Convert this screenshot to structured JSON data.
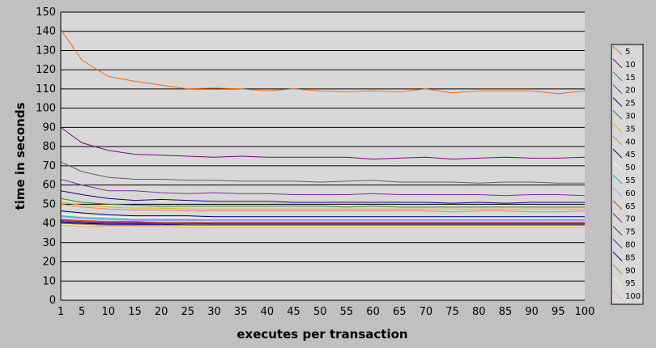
{
  "chart_data": {
    "type": "line",
    "xlabel": "executes per transaction",
    "ylabel": "time in seconds",
    "ylim": [
      0,
      150
    ],
    "xlim": [
      1,
      100
    ],
    "x_ticks": [
      1,
      5,
      10,
      15,
      20,
      25,
      30,
      35,
      40,
      45,
      50,
      55,
      60,
      65,
      70,
      75,
      80,
      85,
      90,
      95,
      100
    ],
    "y_ticks": [
      0,
      10,
      20,
      30,
      40,
      50,
      60,
      70,
      80,
      90,
      100,
      110,
      120,
      130,
      140,
      150
    ],
    "grid": "horizontal",
    "legend_position": "right",
    "x": [
      1,
      5,
      10,
      15,
      20,
      25,
      30,
      35,
      40,
      45,
      50,
      55,
      60,
      65,
      70,
      75,
      80,
      85,
      90,
      95,
      100
    ],
    "series": [
      {
        "name": "5",
        "color": "#ff6600",
        "values": [
          141,
          125,
          116.5,
          114,
          112,
          110,
          110.5,
          110,
          109,
          110,
          109,
          108.5,
          109,
          108.5,
          110,
          108,
          109,
          109,
          109,
          107.5,
          109
        ]
      },
      {
        "name": "10",
        "color": "#800080",
        "values": [
          90,
          82,
          78,
          76,
          75.5,
          75,
          74.5,
          75,
          74.5,
          74.5,
          74.5,
          74.5,
          73.5,
          74,
          74.5,
          73.5,
          74,
          74.5,
          74,
          74,
          74.5
        ]
      },
      {
        "name": "15",
        "color": "#606060",
        "values": [
          72,
          67,
          64,
          63,
          63,
          62.5,
          62.5,
          62,
          62,
          62,
          61.5,
          62,
          62.5,
          61.5,
          61.5,
          61.5,
          61,
          61.5,
          61.5,
          61,
          61
        ]
      },
      {
        "name": "20",
        "color": "#8030a0",
        "values": [
          63,
          60,
          57,
          57,
          56,
          55.5,
          56,
          55.5,
          55.5,
          55,
          55,
          55,
          55.5,
          55,
          55,
          55,
          55,
          54.5,
          55,
          55,
          54.5
        ]
      },
      {
        "name": "25",
        "color": "#200080",
        "values": [
          57,
          55,
          53,
          52,
          52.5,
          52,
          51.5,
          51.5,
          51.5,
          51,
          51,
          51,
          51,
          51,
          51,
          50.5,
          51,
          50.5,
          51,
          51,
          51
        ]
      },
      {
        "name": "30",
        "color": "#408040",
        "values": [
          53,
          51,
          50,
          49.5,
          49,
          49,
          49,
          49,
          49,
          49,
          49,
          48.5,
          49,
          48.5,
          48.5,
          48.5,
          48.5,
          48.5,
          48.5,
          48.5,
          48.5
        ]
      },
      {
        "name": "35",
        "color": "#d0c000",
        "values": [
          51,
          49.5,
          48.5,
          48,
          48,
          47.5,
          47.5,
          47.5,
          47.5,
          47.5,
          47.5,
          47.5,
          47.5,
          47.5,
          47.5,
          47.5,
          47.5,
          47.5,
          47.5,
          47.5,
          47.5
        ]
      },
      {
        "name": "40",
        "color": "#f08060",
        "values": [
          50,
          48.5,
          47.5,
          47,
          47,
          46.5,
          46.5,
          46.5,
          46.5,
          46.5,
          46.5,
          46.5,
          46.5,
          46.5,
          46.5,
          46,
          46.5,
          46.5,
          46,
          46,
          46.5
        ]
      },
      {
        "name": "45",
        "color": "#000060",
        "values": [
          46.5,
          45.5,
          44.5,
          44,
          44,
          44,
          43.5,
          43.5,
          43.5,
          43.5,
          43.5,
          43.5,
          43.5,
          43.5,
          43.5,
          43.5,
          43.5,
          43.5,
          43.5,
          43.5,
          43.5
        ]
      },
      {
        "name": "50",
        "color": "#ffffff",
        "values": [
          45,
          44,
          43.5,
          43,
          43,
          43,
          42.5,
          42.5,
          42.5,
          42.5,
          42.5,
          42.5,
          42.5,
          42.5,
          42.5,
          42.5,
          42.5,
          42.5,
          42.5,
          42.5,
          42.5
        ]
      },
      {
        "name": "55",
        "color": "#00c0c0",
        "values": [
          44,
          43,
          42.5,
          42,
          42,
          42,
          42,
          42,
          42,
          42,
          42,
          42,
          42,
          42,
          42,
          42,
          42,
          42,
          42,
          42,
          42
        ]
      },
      {
        "name": "60",
        "color": "#a0a0ff",
        "values": [
          43.5,
          42.5,
          42,
          41.5,
          41.5,
          41.5,
          41.5,
          41.5,
          41.5,
          41.5,
          41.5,
          41.5,
          41.5,
          41.5,
          41.5,
          41.5,
          41.5,
          41.5,
          41.5,
          41.5,
          41.5
        ]
      },
      {
        "name": "65",
        "color": "#c04000",
        "values": [
          42,
          41.5,
          41,
          41,
          40.5,
          40.5,
          40.5,
          40.5,
          40.5,
          40.5,
          40.5,
          40.5,
          40.5,
          40.5,
          40.5,
          40.5,
          40.5,
          40.5,
          40.5,
          40.5,
          40.5
        ]
      },
      {
        "name": "70",
        "color": "#a00080",
        "values": [
          41.5,
          41,
          40.5,
          40.5,
          40,
          40,
          40,
          40,
          40,
          40,
          40,
          40,
          40,
          40,
          40,
          40,
          40,
          40,
          40,
          40,
          40
        ]
      },
      {
        "name": "75",
        "color": "#404040",
        "values": [
          41,
          40.5,
          40,
          40,
          40,
          40,
          39.5,
          39.5,
          39.5,
          39.5,
          39.5,
          39.5,
          39.5,
          39.5,
          39.5,
          39.5,
          39.5,
          39.5,
          39.5,
          39.5,
          39.5
        ]
      },
      {
        "name": "80",
        "color": "#404080",
        "values": [
          41,
          40.5,
          40,
          39.5,
          39.5,
          39.5,
          39.5,
          39.5,
          39.5,
          39.5,
          39.5,
          39.5,
          39.5,
          39.5,
          39.5,
          39.5,
          39.5,
          39.5,
          39.5,
          39.5,
          39.5
        ]
      },
      {
        "name": "85",
        "color": "#0000a0",
        "values": [
          40.5,
          40,
          39.5,
          39.5,
          39.5,
          39,
          39,
          39,
          39,
          39,
          39,
          39,
          39,
          39,
          39,
          39,
          39,
          39,
          39,
          39,
          39
        ]
      },
      {
        "name": "90",
        "color": "#80a040",
        "values": [
          40,
          39.5,
          39,
          39,
          39,
          39,
          39,
          39,
          39,
          39,
          39,
          39,
          39,
          39,
          39,
          39,
          39,
          39,
          39,
          39,
          39
        ]
      },
      {
        "name": "95",
        "color": "#ffff80",
        "values": [
          39.5,
          39,
          38.5,
          38.5,
          38.5,
          38.5,
          38.5,
          38.5,
          38.5,
          38.5,
          38.5,
          38.5,
          38.5,
          38.5,
          38.5,
          38.5,
          38.5,
          38.5,
          38.5,
          38.5,
          38.5
        ]
      },
      {
        "name": "100",
        "color": "#ffa080",
        "values": [
          39,
          38.5,
          38.5,
          38.5,
          38.5,
          38,
          38,
          38,
          38,
          38,
          38,
          38,
          38,
          38,
          38,
          38,
          38,
          38,
          38,
          38,
          38
        ]
      }
    ]
  }
}
